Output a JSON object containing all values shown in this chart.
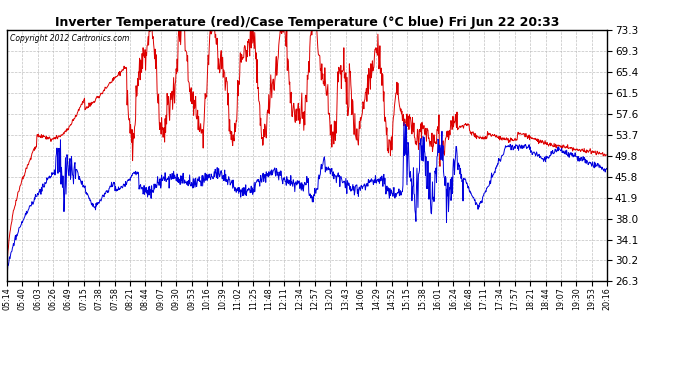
{
  "title": "Inverter Temperature (red)/Case Temperature (°C blue) Fri Jun 22 20:33",
  "copyright": "Copyright 2012 Cartronics.com",
  "yticks": [
    26.3,
    30.2,
    34.1,
    38.0,
    41.9,
    45.8,
    49.8,
    53.7,
    57.6,
    61.5,
    65.4,
    69.3,
    73.3
  ],
  "ymin": 26.3,
  "ymax": 73.3,
  "bg_color": "#ffffff",
  "grid_color": "#bbbbbb",
  "red_color": "#dd0000",
  "blue_color": "#0000dd",
  "xtick_labels": [
    "05:14",
    "05:40",
    "06:03",
    "06:26",
    "06:49",
    "07:15",
    "07:38",
    "07:58",
    "08:21",
    "08:44",
    "09:07",
    "09:30",
    "09:53",
    "10:16",
    "10:39",
    "11:02",
    "11:25",
    "11:48",
    "12:11",
    "12:34",
    "12:57",
    "13:20",
    "13:43",
    "14:06",
    "14:29",
    "14:52",
    "15:15",
    "15:38",
    "16:01",
    "16:24",
    "16:48",
    "17:11",
    "17:34",
    "17:57",
    "18:21",
    "18:44",
    "19:07",
    "19:30",
    "19:53",
    "20:16"
  ]
}
